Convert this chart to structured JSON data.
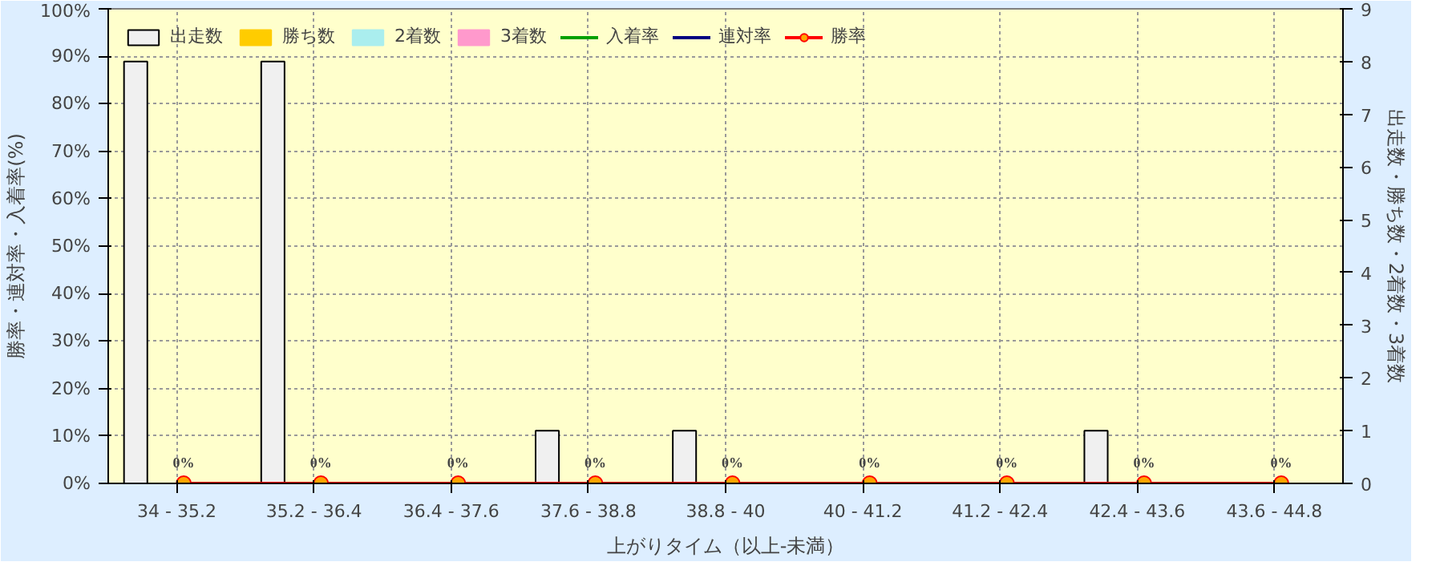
{
  "chart_data": {
    "type": "bar",
    "xlabel": "上がりタイム（以上-未満）",
    "ylabel": "勝率・連対率・入着率(%)",
    "y2label": "出走数・勝ち数・2着数・3着数",
    "categories": [
      "34 - 35.2",
      "35.2 - 36.4",
      "36.4 - 37.6",
      "37.6 - 38.8",
      "38.8 - 40",
      "40 - 41.2",
      "41.2 - 42.4",
      "42.4 - 43.6",
      "43.6 - 44.8"
    ],
    "series": [
      {
        "name": "出走数",
        "axis": "y2",
        "color": "#f0f0f0",
        "values": [
          8,
          8,
          0,
          1,
          1,
          0,
          0,
          1,
          0
        ]
      },
      {
        "name": "勝ち数",
        "axis": "y2",
        "color": "#ffcc00",
        "values": [
          0,
          0,
          0,
          0,
          0,
          0,
          0,
          0,
          0
        ]
      },
      {
        "name": "2着数",
        "axis": "y2",
        "color": "#aaeeee",
        "values": [
          0,
          0,
          0,
          0,
          0,
          0,
          0,
          0,
          0
        ]
      },
      {
        "name": "3着数",
        "axis": "y2",
        "color": "#ff99cc",
        "values": [
          0,
          0,
          0,
          0,
          0,
          0,
          0,
          0,
          0
        ]
      },
      {
        "name": "入着率",
        "type": "line",
        "color": "#00a000",
        "marker": "triangle",
        "values": [
          null,
          null,
          null,
          null,
          null,
          null,
          null,
          null,
          null
        ]
      },
      {
        "name": "連対率",
        "type": "line",
        "color": "#000080",
        "marker": "diamond",
        "values": [
          null,
          null,
          null,
          null,
          null,
          null,
          null,
          null,
          null
        ]
      },
      {
        "name": "勝率",
        "type": "line",
        "color": "#ff0000",
        "marker": "circle",
        "values": [
          0,
          0,
          0,
          0,
          0,
          0,
          0,
          0,
          0
        ],
        "value_labels": [
          "0%",
          "0%",
          "0%",
          "0%",
          "0%",
          "0%",
          "0%",
          "0%",
          "0%"
        ]
      }
    ],
    "ylim": [
      0,
      100
    ],
    "yticks": [
      {
        "value": 0,
        "label": "0%"
      },
      {
        "value": 10,
        "label": "10%"
      },
      {
        "value": 20,
        "label": "20%"
      },
      {
        "value": 30,
        "label": "30%"
      },
      {
        "value": 40,
        "label": "40%"
      },
      {
        "value": 50,
        "label": "50%"
      },
      {
        "value": 60,
        "label": "60%"
      },
      {
        "value": 70,
        "label": "70%"
      },
      {
        "value": 80,
        "label": "80%"
      },
      {
        "value": 90,
        "label": "90%"
      },
      {
        "value": 100,
        "label": "100%"
      }
    ],
    "y2lim": [
      0,
      9
    ],
    "y2ticks": [
      0,
      1,
      2,
      3,
      4,
      5,
      6,
      7,
      8,
      9
    ],
    "grid": true,
    "legend": "top left",
    "line_style": "solid"
  }
}
